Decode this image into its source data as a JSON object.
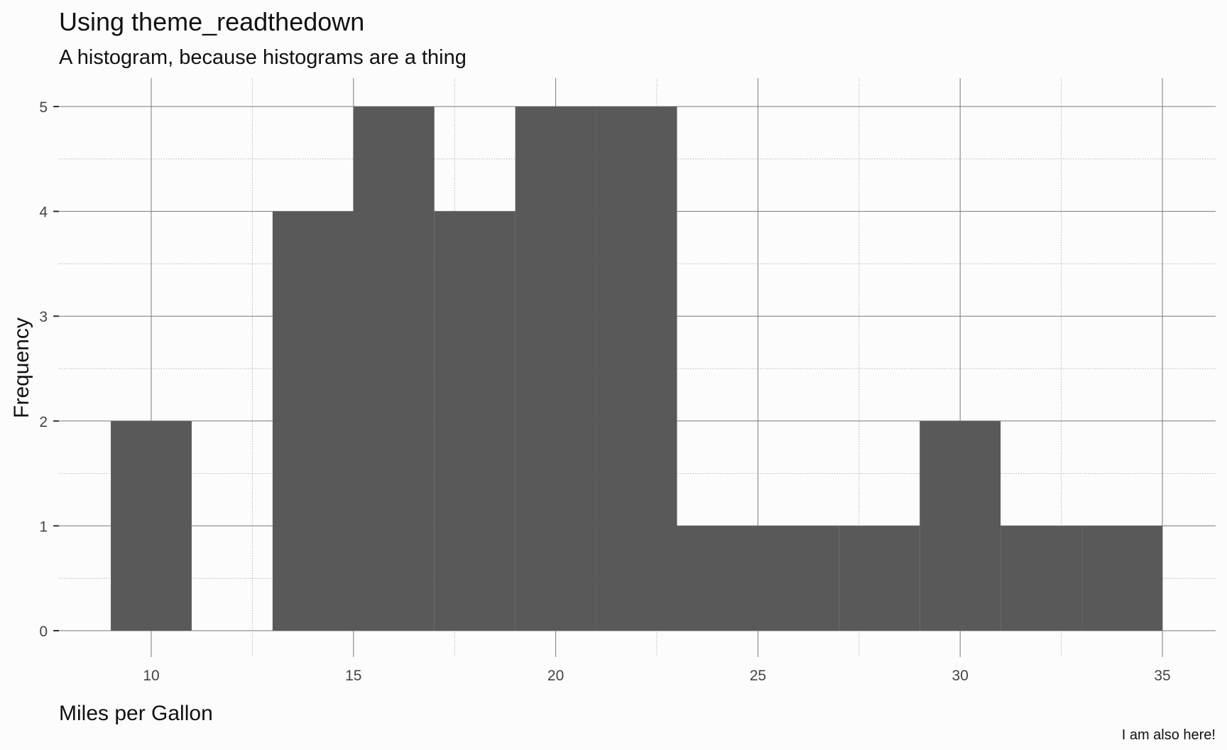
{
  "chart_data": {
    "type": "bar",
    "title": "Using theme_readthedown",
    "subtitle": "A histogram, because histograms are a thing",
    "xlabel": "Miles per Gallon",
    "ylabel": "Frequency",
    "caption": "I am also here!",
    "xlim": [
      7.68,
      37.32
    ],
    "ylim": [
      0,
      5.25
    ],
    "x_ticks": [
      10,
      15,
      20,
      25,
      30,
      35
    ],
    "y_ticks": [
      0,
      1,
      2,
      3,
      4,
      5
    ],
    "bin_width": 2,
    "bins": [
      {
        "x0": 9,
        "x1": 11,
        "count": 2
      },
      {
        "x0": 11,
        "x1": 13,
        "count": 0
      },
      {
        "x0": 13,
        "x1": 15,
        "count": 4
      },
      {
        "x0": 15,
        "x1": 17,
        "count": 5
      },
      {
        "x0": 17,
        "x1": 19,
        "count": 4
      },
      {
        "x0": 19,
        "x1": 21,
        "count": 5
      },
      {
        "x0": 21,
        "x1": 23,
        "count": 5
      },
      {
        "x0": 23,
        "x1": 25,
        "count": 1
      },
      {
        "x0": 25,
        "x1": 27,
        "count": 1
      },
      {
        "x0": 27,
        "x1": 29,
        "count": 1
      },
      {
        "x0": 29,
        "x1": 31,
        "count": 2
      },
      {
        "x0": 31,
        "x1": 33,
        "count": 1
      },
      {
        "x0": 33,
        "x1": 35,
        "count": 1
      }
    ],
    "grid": true,
    "legend": "none",
    "colors": {
      "bar": "#595959",
      "background": "#fcfcfc",
      "grid_major": "#7a7a7a",
      "grid_minor": "#b5b5b5"
    }
  }
}
